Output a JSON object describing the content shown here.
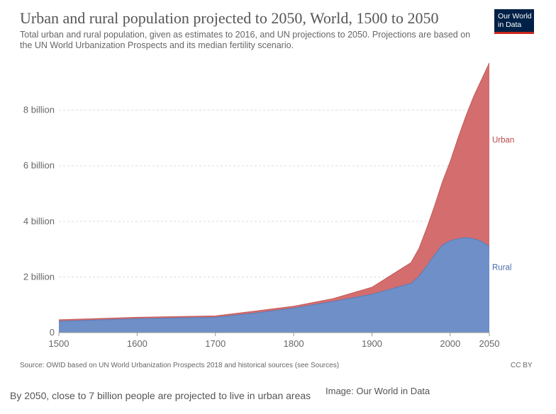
{
  "header": {
    "title": "Urban and rural population projected to 2050, World, 1500 to 2050",
    "subtitle": "Total urban and rural population, given as estimates to 2016, and UN projections to 2050. Projections are based on the UN World Urbanization Prospects and its median fertility scenario.",
    "logo_line1": "Our World",
    "logo_line2": "in Data"
  },
  "footer": {
    "source": "Source: OWID based on UN World Urbanization Prospects 2018 and historical sources (see Sources)",
    "license": "CC BY"
  },
  "caption": "By 2050, close to 7 billion people are projected to live in urban areas",
  "credit": "Image: Our World in Data",
  "colors": {
    "urban": "#d46d6d",
    "rural": "#6e8fc7",
    "logo_bg": "#002147",
    "logo_accent": "#ce261e"
  },
  "chart_data": {
    "type": "area",
    "stacked": true,
    "title": "Urban and rural population projected to 2050, World, 1500 to 2050",
    "xlim": [
      1500,
      2050
    ],
    "ylim": [
      0,
      10
    ],
    "y_unit": "billion",
    "x_ticks": [
      "1500",
      "1600",
      "1700",
      "1800",
      "1900",
      "2000",
      "2050"
    ],
    "y_ticks": [
      {
        "value": 0,
        "label": "0"
      },
      {
        "value": 2,
        "label": "2 billion"
      },
      {
        "value": 4,
        "label": "4 billion"
      },
      {
        "value": 6,
        "label": "6 billion"
      },
      {
        "value": 8,
        "label": "8 billion"
      }
    ],
    "grid": true,
    "series": [
      {
        "name": "Rural",
        "points": [
          [
            1500,
            0.41
          ],
          [
            1600,
            0.5
          ],
          [
            1700,
            0.55
          ],
          [
            1750,
            0.7
          ],
          [
            1800,
            0.88
          ],
          [
            1850,
            1.12
          ],
          [
            1900,
            1.38
          ],
          [
            1950,
            1.77
          ],
          [
            1960,
            2.02
          ],
          [
            1970,
            2.4
          ],
          [
            1980,
            2.8
          ],
          [
            1990,
            3.15
          ],
          [
            2000,
            3.3
          ],
          [
            2010,
            3.38
          ],
          [
            2020,
            3.42
          ],
          [
            2030,
            3.38
          ],
          [
            2040,
            3.28
          ],
          [
            2050,
            3.1
          ]
        ]
      },
      {
        "name": "Urban",
        "points": [
          [
            1500,
            0.05
          ],
          [
            1600,
            0.05
          ],
          [
            1700,
            0.05
          ],
          [
            1750,
            0.07
          ],
          [
            1800,
            0.07
          ],
          [
            1850,
            0.1
          ],
          [
            1900,
            0.25
          ],
          [
            1950,
            0.75
          ],
          [
            1960,
            1.0
          ],
          [
            1970,
            1.35
          ],
          [
            1980,
            1.75
          ],
          [
            1990,
            2.27
          ],
          [
            2000,
            2.85
          ],
          [
            2010,
            3.62
          ],
          [
            2020,
            4.36
          ],
          [
            2030,
            5.11
          ],
          [
            2040,
            5.82
          ],
          [
            2050,
            6.6
          ]
        ]
      }
    ]
  }
}
